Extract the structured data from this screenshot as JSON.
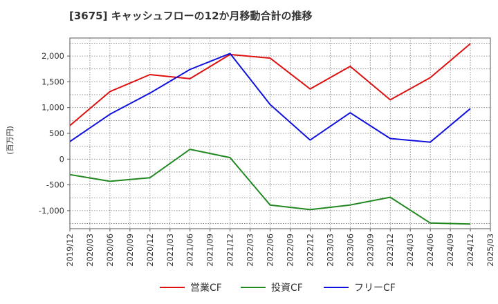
{
  "chart_data": {
    "type": "line",
    "title": "[3675]  キャッシュフローの12か月移動合計の推移",
    "ylabel": "(百万円)",
    "xlabel": "",
    "ylim": [
      -1350,
      2350
    ],
    "yticks": [
      -1000,
      -500,
      0,
      500,
      1000,
      1500,
      2000
    ],
    "ytick_labels": [
      "-1,000",
      "-500",
      "0",
      "500",
      "1,000",
      "1,500",
      "2,000"
    ],
    "categories": [
      "2019/12",
      "2020/03",
      "2020/06",
      "2020/09",
      "2020/12",
      "2021/03",
      "2021/06",
      "2021/09",
      "2021/12",
      "2022/03",
      "2022/06",
      "2022/09",
      "2022/12",
      "2023/03",
      "2023/06",
      "2023/09",
      "2023/12",
      "2024/03",
      "2024/06",
      "2024/09",
      "2024/12",
      "2025/03"
    ],
    "grid": true,
    "legend_position": "bottom",
    "series": [
      {
        "name": "営業CF",
        "color": "#dd1111",
        "values": [
          650,
          null,
          1310,
          null,
          1640,
          null,
          1560,
          null,
          2030,
          null,
          1960,
          null,
          1360,
          null,
          1800,
          null,
          1150,
          null,
          1580,
          null,
          2240,
          null
        ]
      },
      {
        "name": "投資CF",
        "color": "#228822",
        "values": [
          -300,
          null,
          -430,
          null,
          -360,
          null,
          190,
          null,
          30,
          null,
          -890,
          null,
          -980,
          null,
          -890,
          null,
          -740,
          null,
          -1240,
          null,
          -1260,
          null
        ]
      },
      {
        "name": "フリーCF",
        "color": "#1111dd",
        "values": [
          340,
          null,
          870,
          null,
          1280,
          null,
          1740,
          null,
          2050,
          null,
          1060,
          null,
          370,
          null,
          900,
          null,
          400,
          null,
          330,
          null,
          980,
          null
        ]
      }
    ]
  }
}
